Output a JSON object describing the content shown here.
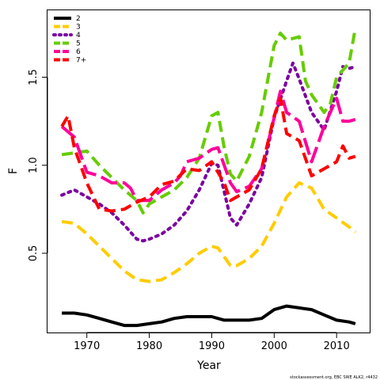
{
  "chart_data": {
    "type": "line",
    "xlabel": "Year",
    "ylabel": "F",
    "xlim": [
      1963.7,
      2015.3
    ],
    "ylim": [
      0.05,
      1.88
    ],
    "xticks": [
      1970,
      1980,
      1990,
      2000,
      2010
    ],
    "xtick_labels": [
      "1970",
      "1980",
      "1990",
      "2000",
      "2010"
    ],
    "yticks": [
      0.5,
      1.0,
      1.5
    ],
    "ytick_labels": [
      "0.5",
      "1.0",
      "1.5"
    ],
    "legend_position": "top-left",
    "footer": "stockassessment.org, EBC SWE ALK2, r4432",
    "series": [
      {
        "name": "2",
        "color": "#000000",
        "dash": "solid",
        "x": [
          1966,
          1968,
          1970,
          1972,
          1974,
          1976,
          1978,
          1980,
          1982,
          1984,
          1986,
          1987,
          1988,
          1990,
          1992,
          1994,
          1996,
          1998,
          2000,
          2002,
          2004,
          2006,
          2008,
          2010,
          2012,
          2013
        ],
        "y": [
          0.16,
          0.16,
          0.15,
          0.13,
          0.11,
          0.09,
          0.09,
          0.1,
          0.11,
          0.13,
          0.14,
          0.14,
          0.14,
          0.14,
          0.12,
          0.12,
          0.12,
          0.13,
          0.18,
          0.2,
          0.19,
          0.18,
          0.15,
          0.12,
          0.11,
          0.1
        ]
      },
      {
        "name": "3",
        "color": "#FFCC00",
        "dash": "dashed",
        "x": [
          1966,
          1968,
          1970,
          1972,
          1974,
          1976,
          1978,
          1980,
          1982,
          1984,
          1986,
          1988,
          1990,
          1991,
          1992,
          1993,
          1994,
          1996,
          1998,
          2000,
          2002,
          2004,
          2006,
          2008,
          2010,
          2012,
          2013
        ],
        "y": [
          0.68,
          0.67,
          0.61,
          0.54,
          0.47,
          0.4,
          0.35,
          0.34,
          0.35,
          0.39,
          0.44,
          0.5,
          0.54,
          0.53,
          0.48,
          0.43,
          0.43,
          0.47,
          0.54,
          0.67,
          0.82,
          0.9,
          0.87,
          0.75,
          0.7,
          0.65,
          0.62
        ]
      },
      {
        "name": "4",
        "color": "#7B00A0",
        "dash": "dotted",
        "x": [
          1966,
          1968,
          1970,
          1972,
          1974,
          1976,
          1978,
          1979,
          1980,
          1982,
          1984,
          1986,
          1988,
          1990,
          1991,
          1992,
          1993,
          1994,
          1996,
          1998,
          2000,
          2002,
          2003,
          2004,
          2006,
          2008,
          2010,
          2011,
          2012,
          2013
        ],
        "y": [
          0.83,
          0.86,
          0.82,
          0.78,
          0.73,
          0.66,
          0.58,
          0.57,
          0.58,
          0.61,
          0.66,
          0.74,
          0.86,
          1.01,
          1.0,
          0.85,
          0.7,
          0.66,
          0.78,
          0.93,
          1.27,
          1.48,
          1.58,
          1.49,
          1.3,
          1.2,
          1.42,
          1.56,
          1.55,
          1.56
        ]
      },
      {
        "name": "5",
        "color": "#66CC00",
        "dash": "dashed",
        "x": [
          1966,
          1968,
          1970,
          1972,
          1974,
          1976,
          1978,
          1979,
          1980,
          1982,
          1984,
          1986,
          1988,
          1990,
          1991,
          1992,
          1993,
          1994,
          1996,
          1998,
          2000,
          2001,
          2002,
          2004,
          2005,
          2006,
          2008,
          2009,
          2010,
          2012,
          2013
        ],
        "y": [
          1.06,
          1.07,
          1.08,
          1.0,
          0.93,
          0.86,
          0.8,
          0.73,
          0.78,
          0.82,
          0.86,
          0.93,
          1.04,
          1.28,
          1.3,
          1.1,
          0.95,
          0.91,
          1.05,
          1.3,
          1.68,
          1.75,
          1.71,
          1.73,
          1.48,
          1.4,
          1.3,
          1.35,
          1.5,
          1.58,
          1.78
        ]
      },
      {
        "name": "6",
        "color": "#FF0099",
        "dash": "longdash",
        "x": [
          1966,
          1968,
          1970,
          1972,
          1974,
          1976,
          1977,
          1978,
          1980,
          1982,
          1984,
          1985,
          1986,
          1988,
          1990,
          1991,
          1992,
          1993,
          1994,
          1996,
          1998,
          2000,
          2001,
          2002,
          2004,
          2006,
          2008,
          2010,
          2011,
          2012,
          2013
        ],
        "y": [
          1.22,
          1.16,
          0.96,
          0.94,
          0.9,
          0.9,
          0.87,
          0.8,
          0.8,
          0.86,
          0.9,
          0.94,
          1.02,
          1.04,
          1.09,
          1.1,
          1.0,
          0.9,
          0.85,
          0.88,
          0.98,
          1.27,
          1.42,
          1.3,
          1.25,
          1.02,
          1.22,
          1.38,
          1.25,
          1.25,
          1.26
        ]
      },
      {
        "name": "7+",
        "color": "#FF0000",
        "dash": "dashed",
        "x": [
          1966,
          1967,
          1968,
          1970,
          1972,
          1974,
          1976,
          1978,
          1980,
          1982,
          1984,
          1986,
          1988,
          1990,
          1992,
          1993,
          1994,
          1996,
          1998,
          2000,
          2001,
          2002,
          2004,
          2006,
          2008,
          2010,
          2011,
          2012,
          2013
        ],
        "y": [
          1.22,
          1.28,
          1.1,
          0.9,
          0.75,
          0.74,
          0.75,
          0.79,
          0.82,
          0.89,
          0.91,
          0.98,
          0.97,
          1.02,
          0.9,
          0.8,
          0.82,
          0.86,
          0.98,
          1.28,
          1.38,
          1.18,
          1.14,
          0.94,
          0.98,
          1.02,
          1.11,
          1.04,
          1.05
        ]
      }
    ]
  }
}
